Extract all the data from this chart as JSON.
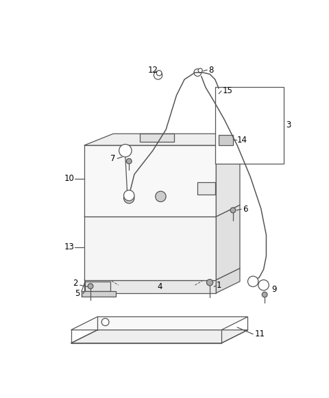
{
  "bg_color": "#ffffff",
  "line_color": "#555555",
  "label_color": "#000000",
  "figsize": [
    4.8,
    5.81
  ],
  "dpi": 100,
  "lw": 0.9,
  "label_fs": 8.5
}
